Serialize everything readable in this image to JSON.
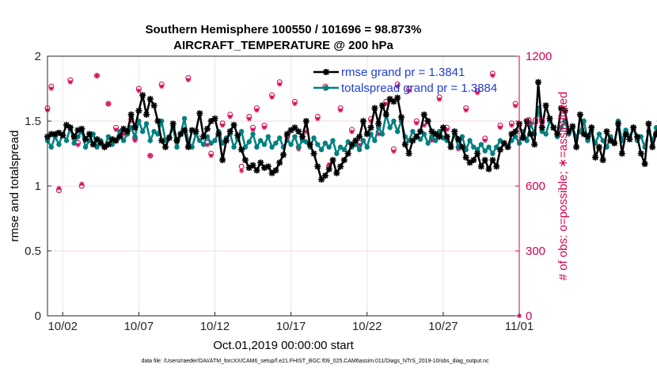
{
  "chart_data": {
    "type": "line",
    "title": "Southern Hemisphere 100550 / 101696 = 98.873%",
    "subtitle": "AIRCRAFT_TEMPERATURE @ 200 hPa",
    "xlabel": "Oct.01,2019 00:00:00 start",
    "ylabel": "rmse and totalspread",
    "y2label": "# of obs: o=possible; ∗=assimilated",
    "footnote": "data file: /Users/raeder/DAI/ATM_forcXX/CAM6_setup/f.e21.FHIST_BGC.f09_025.CAM6assim.011/Diags_NTrS_2019-10/obs_diag_output.nc",
    "xlim": [
      1,
      32
    ],
    "ylim": [
      0,
      2
    ],
    "y2lim": [
      0,
      1200
    ],
    "x_tick_labels": [
      "10/02",
      "10/07",
      "10/12",
      "10/17",
      "10/22",
      "10/27",
      "11/01"
    ],
    "x_ticks": [
      2,
      7,
      12,
      17,
      22,
      27,
      32
    ],
    "y_ticks": [
      "0",
      "0.5",
      "1",
      "1.5",
      "2"
    ],
    "y_tick_values": [
      0,
      0.5,
      1,
      1.5,
      2
    ],
    "y2_ticks": [
      "0",
      "300",
      "600",
      "900",
      "1200"
    ],
    "y2_tick_values": [
      0,
      300,
      600,
      900,
      1200
    ],
    "colors": {
      "rmse": "#000000",
      "spread": "#008080",
      "obs": "#d6004f"
    },
    "series": [
      {
        "name": "rmse",
        "legend": "rmse grand pr = 1.3841",
        "x_start": 1.0,
        "x_step": 0.25,
        "values": [
          1.38,
          1.4,
          1.4,
          1.41,
          1.39,
          1.47,
          1.45,
          1.38,
          1.43,
          1.44,
          1.36,
          1.4,
          1.32,
          1.36,
          1.33,
          1.3,
          1.32,
          1.36,
          1.35,
          1.38,
          1.44,
          1.42,
          1.55,
          1.45,
          1.58,
          1.7,
          1.55,
          1.67,
          1.62,
          1.5,
          1.35,
          1.3,
          1.37,
          1.48,
          1.35,
          1.4,
          1.43,
          1.3,
          1.43,
          1.42,
          1.56,
          1.38,
          1.44,
          1.5,
          1.52,
          1.4,
          1.2,
          1.35,
          1.42,
          1.47,
          1.39,
          1.28,
          1.2,
          1.14,
          1.16,
          1.12,
          1.18,
          1.14,
          1.15,
          1.1,
          1.12,
          1.18,
          1.24,
          1.4,
          1.43,
          1.45,
          1.42,
          1.38,
          1.5,
          1.32,
          1.25,
          1.15,
          1.05,
          1.08,
          1.13,
          1.2,
          1.1,
          1.15,
          1.2,
          1.25,
          1.32,
          1.35,
          1.38,
          1.5,
          1.4,
          1.45,
          1.6,
          1.48,
          1.62,
          1.55,
          1.67,
          1.65,
          1.68,
          1.53,
          1.32,
          1.25,
          1.35,
          1.38,
          1.42,
          1.55,
          1.5,
          1.42,
          1.4,
          1.38,
          1.45,
          1.38,
          1.3,
          1.42,
          1.36,
          1.3,
          1.22,
          1.18,
          1.2,
          1.25,
          1.15,
          1.2,
          1.13,
          1.2,
          1.15,
          1.28,
          1.33,
          1.3,
          1.4,
          1.42,
          1.48,
          1.37,
          1.5,
          1.4,
          1.32,
          1.8,
          1.45,
          1.62,
          1.52,
          1.45,
          1.4,
          1.6,
          1.58,
          1.42,
          1.46,
          1.3,
          1.55,
          1.4,
          1.38,
          1.45,
          1.22,
          1.3,
          1.2,
          1.42,
          1.35,
          1.33,
          1.48,
          1.25,
          1.4,
          1.36,
          1.45,
          1.38,
          1.25,
          1.17,
          1.48,
          1.3,
          1.4,
          1.5,
          1.55,
          1.45,
          1.38,
          1.5,
          1.42,
          1.57
        ]
      },
      {
        "name": "totalspread",
        "legend": "totalspread grand pr = 1.3884",
        "x_start": 1.0,
        "x_step": 0.25,
        "values": [
          1.35,
          1.3,
          1.38,
          1.32,
          1.4,
          1.35,
          1.45,
          1.33,
          1.38,
          1.42,
          1.3,
          1.35,
          1.4,
          1.3,
          1.35,
          1.3,
          1.38,
          1.32,
          1.35,
          1.42,
          1.35,
          1.4,
          1.45,
          1.38,
          1.5,
          1.42,
          1.48,
          1.35,
          1.42,
          1.4,
          1.5,
          1.35,
          1.38,
          1.45,
          1.3,
          1.4,
          1.52,
          1.35,
          1.3,
          1.4,
          1.35,
          1.32,
          1.38,
          1.33,
          1.35,
          1.42,
          1.33,
          1.37,
          1.4,
          1.3,
          1.36,
          1.42,
          1.3,
          1.34,
          1.4,
          1.3,
          1.35,
          1.32,
          1.38,
          1.3,
          1.33,
          1.37,
          1.3,
          1.35,
          1.32,
          1.38,
          1.3,
          1.35,
          1.34,
          1.3,
          1.37,
          1.32,
          1.28,
          1.33,
          1.3,
          1.35,
          1.25,
          1.3,
          1.28,
          1.34,
          1.3,
          1.32,
          1.28,
          1.35,
          1.3,
          1.4,
          1.35,
          1.45,
          1.4,
          1.55,
          1.45,
          1.5,
          1.42,
          1.5,
          1.38,
          1.35,
          1.42,
          1.38,
          1.36,
          1.4,
          1.33,
          1.38,
          1.35,
          1.42,
          1.37,
          1.35,
          1.32,
          1.4,
          1.3,
          1.38,
          1.28,
          1.35,
          1.3,
          1.28,
          1.32,
          1.27,
          1.3,
          1.25,
          1.3,
          1.35,
          1.33,
          1.3,
          1.35,
          1.38,
          1.33,
          1.42,
          1.35,
          1.48,
          1.4,
          1.6,
          1.42,
          1.4,
          1.5,
          1.45,
          1.38,
          1.45,
          1.5,
          1.4,
          1.45,
          1.38,
          1.42,
          1.5,
          1.35,
          1.42,
          1.33,
          1.4,
          1.35,
          1.3,
          1.38,
          1.33,
          1.5,
          1.35,
          1.43,
          1.38,
          1.45,
          1.35,
          1.38,
          1.3,
          1.42,
          1.35,
          1.45,
          1.4,
          1.38,
          1.42,
          1.35,
          1.4,
          1.42,
          1.38
        ]
      }
    ],
    "obs_counts": {
      "possible": [
        [
          1.0,
          960
        ],
        [
          1.25,
          1060
        ],
        [
          1.75,
          580
        ],
        [
          2.5,
          1090
        ],
        [
          3.0,
          800
        ],
        [
          3.25,
          600
        ],
        [
          4.25,
          1110
        ],
        [
          5.0,
          980
        ],
        [
          5.5,
          870
        ],
        [
          6.0,
          850
        ],
        [
          6.5,
          910
        ],
        [
          6.75,
          820
        ],
        [
          7.0,
          1050
        ],
        [
          7.75,
          740
        ],
        [
          8.5,
          1070
        ],
        [
          9.5,
          810
        ],
        [
          10.25,
          1100
        ],
        [
          11.0,
          820
        ],
        [
          11.5,
          800
        ],
        [
          11.75,
          750
        ],
        [
          12.5,
          890
        ],
        [
          13.0,
          930
        ],
        [
          13.75,
          690
        ],
        [
          14.25,
          920
        ],
        [
          14.5,
          870
        ],
        [
          14.75,
          960
        ],
        [
          15.25,
          880
        ],
        [
          15.75,
          1020
        ],
        [
          16.25,
          1080
        ],
        [
          16.75,
          830
        ],
        [
          17.25,
          990
        ],
        [
          17.5,
          780
        ],
        [
          18.0,
          860
        ],
        [
          18.75,
          920
        ],
        [
          19.25,
          1060
        ],
        [
          19.5,
          690
        ],
        [
          20.25,
          960
        ],
        [
          21.0,
          860
        ],
        [
          21.5,
          800
        ],
        [
          22.25,
          910
        ],
        [
          22.75,
          850
        ],
        [
          23.25,
          990
        ],
        [
          23.75,
          770
        ],
        [
          24.0,
          1070
        ],
        [
          24.75,
          1050
        ],
        [
          25.25,
          900
        ],
        [
          25.75,
          890
        ],
        [
          26.25,
          820
        ],
        [
          26.75,
          1010
        ],
        [
          27.25,
          870
        ],
        [
          28.0,
          780
        ],
        [
          28.5,
          960
        ],
        [
          29.25,
          1040
        ],
        [
          29.75,
          820
        ],
        [
          30.25,
          1120
        ],
        [
          30.75,
          880
        ],
        [
          31.5,
          890
        ],
        [
          31.75,
          980
        ]
      ],
      "assimilated": [
        [
          1.0,
          950
        ],
        [
          1.25,
          1050
        ],
        [
          1.75,
          590
        ],
        [
          2.5,
          1080
        ],
        [
          3.0,
          790
        ],
        [
          3.25,
          610
        ],
        [
          4.25,
          1110
        ],
        [
          5.0,
          980
        ],
        [
          5.5,
          860
        ],
        [
          6.0,
          840
        ],
        [
          6.5,
          900
        ],
        [
          6.75,
          810
        ],
        [
          7.0,
          1040
        ],
        [
          7.75,
          740
        ],
        [
          8.5,
          1060
        ],
        [
          9.5,
          800
        ],
        [
          10.25,
          1090
        ],
        [
          11.0,
          810
        ],
        [
          11.5,
          790
        ],
        [
          11.75,
          740
        ],
        [
          12.5,
          880
        ],
        [
          13.0,
          920
        ],
        [
          13.75,
          670
        ],
        [
          14.25,
          910
        ],
        [
          14.5,
          860
        ],
        [
          14.75,
          950
        ],
        [
          15.25,
          870
        ],
        [
          15.75,
          1010
        ],
        [
          16.25,
          1070
        ],
        [
          16.75,
          820
        ],
        [
          17.25,
          980
        ],
        [
          17.5,
          770
        ],
        [
          18.0,
          850
        ],
        [
          18.75,
          910
        ],
        [
          19.25,
          1050
        ],
        [
          19.5,
          700
        ],
        [
          20.25,
          950
        ],
        [
          21.0,
          850
        ],
        [
          21.5,
          790
        ],
        [
          22.25,
          900
        ],
        [
          22.75,
          840
        ],
        [
          23.25,
          980
        ],
        [
          23.75,
          760
        ],
        [
          24.0,
          1060
        ],
        [
          24.75,
          1040
        ],
        [
          25.25,
          890
        ],
        [
          25.75,
          880
        ],
        [
          26.25,
          810
        ],
        [
          26.75,
          1000
        ],
        [
          27.25,
          860
        ],
        [
          28.0,
          770
        ],
        [
          28.5,
          950
        ],
        [
          29.25,
          1030
        ],
        [
          29.75,
          810
        ],
        [
          30.25,
          1110
        ],
        [
          30.75,
          870
        ],
        [
          31.5,
          880
        ],
        [
          31.75,
          970
        ],
        [
          32.0,
          0
        ]
      ]
    }
  }
}
